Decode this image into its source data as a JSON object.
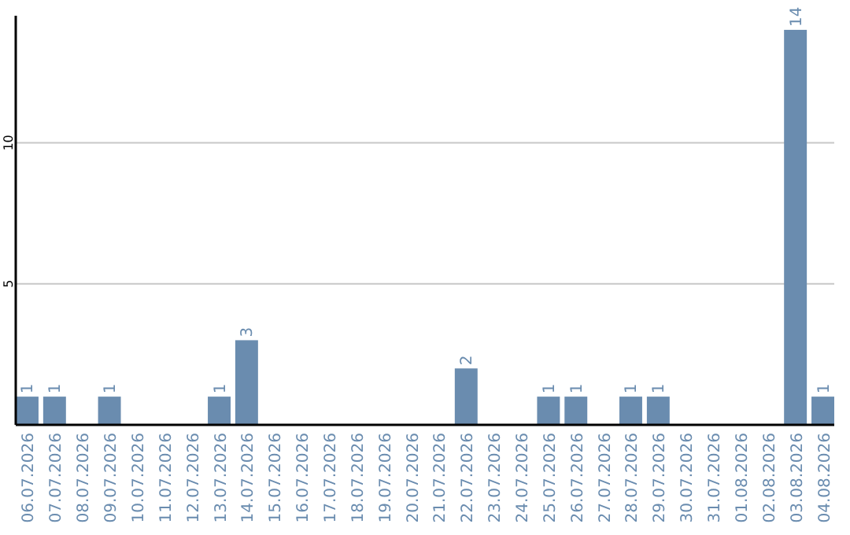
{
  "chart_data": {
    "type": "bar",
    "categories": [
      "06.07.2026",
      "07.07.2026",
      "08.07.2026",
      "09.07.2026",
      "10.07.2026",
      "11.07.2026",
      "12.07.2026",
      "13.07.2026",
      "14.07.2026",
      "15.07.2026",
      "16.07.2026",
      "17.07.2026",
      "18.07.2026",
      "19.07.2026",
      "20.07.2026",
      "21.07.2026",
      "22.07.2026",
      "23.07.2026",
      "24.07.2026",
      "25.07.2026",
      "26.07.2026",
      "27.07.2026",
      "28.07.2026",
      "29.07.2026",
      "30.07.2026",
      "31.07.2026",
      "01.08.2026",
      "02.08.2026",
      "03.08.2026",
      "04.08.2026"
    ],
    "values": [
      1,
      1,
      0,
      1,
      0,
      0,
      0,
      1,
      3,
      0,
      0,
      0,
      0,
      0,
      0,
      0,
      2,
      0,
      0,
      1,
      1,
      0,
      1,
      1,
      0,
      0,
      0,
      0,
      14,
      1
    ],
    "value_labels": [
      "1",
      "1",
      null,
      "1",
      null,
      null,
      null,
      "1",
      "3",
      null,
      null,
      null,
      null,
      null,
      null,
      null,
      "2",
      null,
      null,
      "1",
      "1",
      null,
      "1",
      "1",
      null,
      null,
      null,
      null,
      "14",
      "1"
    ],
    "color": "#6a8caf",
    "ylim": [
      0,
      14.5
    ],
    "yticks": [
      5,
      10
    ],
    "grid": "y"
  }
}
